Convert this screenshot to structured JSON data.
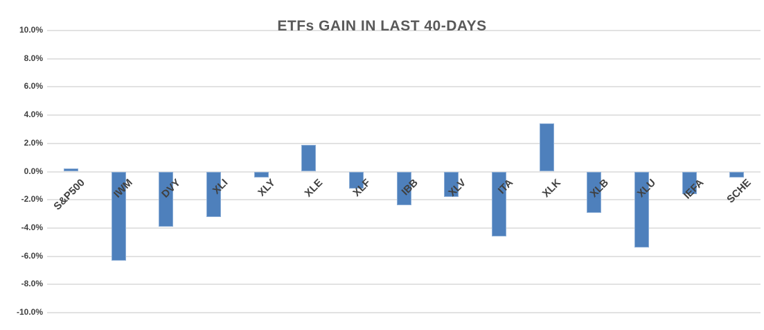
{
  "chart_data": {
    "type": "bar",
    "title": "ETFs GAIN IN LAST 40-DAYS",
    "categories": [
      "S&P500",
      "IWM",
      "DVY",
      "XLI",
      "XLY",
      "XLE",
      "XLF",
      "IBB",
      "XLV",
      "ITA",
      "XLK",
      "XLB",
      "XLU",
      "IEFA",
      "SCHE"
    ],
    "values": [
      0.2,
      -6.3,
      -3.9,
      -3.2,
      -0.4,
      1.9,
      -1.2,
      -2.4,
      -1.8,
      -4.6,
      3.4,
      -2.9,
      -5.4,
      -1.6,
      -0.4
    ],
    "unit": "%",
    "xlabel": "",
    "ylabel": "",
    "ylim": [
      -10,
      10
    ],
    "y_tick_step": 2,
    "y_tick_labels": [
      "10.0%",
      "8.0%",
      "6.0%",
      "4.0%",
      "2.0%",
      "0.0%",
      "-2.0%",
      "-4.0%",
      "-6.0%",
      "-8.0%",
      "-10.0%"
    ],
    "grid": true,
    "legend": false,
    "colors": {
      "bar_fill": "#4e80bc",
      "bar_border": "#8badd6",
      "gridline": "#e2e2e2",
      "title_text": "#595959",
      "axis_text": "#404040",
      "background": "#ffffff"
    }
  }
}
